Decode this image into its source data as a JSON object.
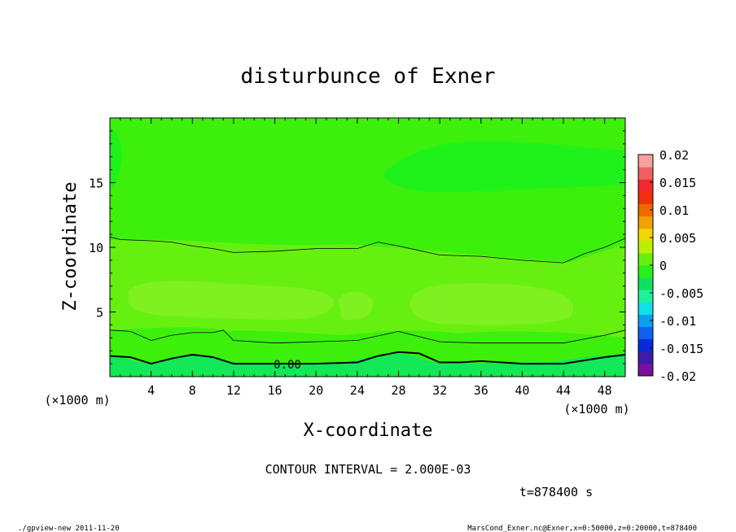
{
  "chart_data": {
    "type": "heatmap",
    "title": "disturbunce of Exner",
    "xlabel": "X-coordinate",
    "ylabel": "Z-coordinate",
    "x_unit_left": "(×1000 m)",
    "x_unit_right": "(×1000 m)",
    "xlim": [
      0,
      50
    ],
    "ylim": [
      0,
      20
    ],
    "x_ticks": [
      4,
      8,
      12,
      16,
      20,
      24,
      28,
      32,
      36,
      40,
      44,
      48
    ],
    "y_ticks": [
      5,
      10,
      15
    ],
    "contour_label": "0.00",
    "contour_interval_text": "CONTOUR INTERVAL = 2.000E-03",
    "time_text": "t=878400 s",
    "colorbar": {
      "ticks": [
        "0.02",
        "0.015",
        "0.01",
        "0.005",
        "0",
        "-0.005",
        "-0.01",
        "-0.015",
        "-0.02"
      ],
      "range": [
        -0.02,
        0.02
      ],
      "colors": [
        "#7c0fa0",
        "#3a1ea8",
        "#0a2ad8",
        "#1060f0",
        "#0aa0f0",
        "#10e0e8",
        "#1ef0a0",
        "#10e060",
        "#2af01a",
        "#66f010",
        "#b8f000",
        "#f0d800",
        "#f0a000",
        "#f06800",
        "#f02e10",
        "#f02a2a",
        "#f06060",
        "#f8a0a0"
      ]
    },
    "contours": [
      {
        "level": "0.00",
        "x": [
          0,
          2,
          4,
          6,
          8,
          10,
          12,
          16,
          20,
          24,
          26,
          28,
          30,
          32,
          34,
          36,
          40,
          44,
          48,
          50
        ],
        "z": [
          1.6,
          1.5,
          1.0,
          1.4,
          1.7,
          1.5,
          1.0,
          1.0,
          1.0,
          1.1,
          1.6,
          1.9,
          1.8,
          1.1,
          1.1,
          1.2,
          1.0,
          1.0,
          1.5,
          1.7
        ]
      },
      {
        "level": "0.002",
        "x": [
          0,
          2,
          4,
          6,
          8,
          10,
          11,
          12,
          16,
          20,
          24,
          28,
          32,
          36,
          40,
          44,
          48,
          50
        ],
        "z": [
          3.6,
          3.5,
          2.8,
          3.2,
          3.4,
          3.4,
          3.6,
          2.8,
          2.6,
          2.7,
          2.8,
          3.5,
          2.7,
          2.6,
          2.6,
          2.6,
          3.2,
          3.6
        ]
      },
      {
        "level": "0.004",
        "x": [
          0,
          1,
          4,
          6,
          8,
          10,
          12,
          16,
          20,
          24,
          26,
          28,
          32,
          36,
          40,
          44,
          46,
          48,
          50
        ],
        "z": [
          10.8,
          10.6,
          10.5,
          10.4,
          10.1,
          9.9,
          9.6,
          9.7,
          9.9,
          9.9,
          10.4,
          10.1,
          9.4,
          9.3,
          9.0,
          8.8,
          9.5,
          10.0,
          10.7
        ]
      }
    ]
  },
  "footer": {
    "left": "./gpview-new  2011-11-20",
    "right": "MarsCond_Exner.nc@Exner,x=0:50000,z=0:20000,t=878400"
  }
}
